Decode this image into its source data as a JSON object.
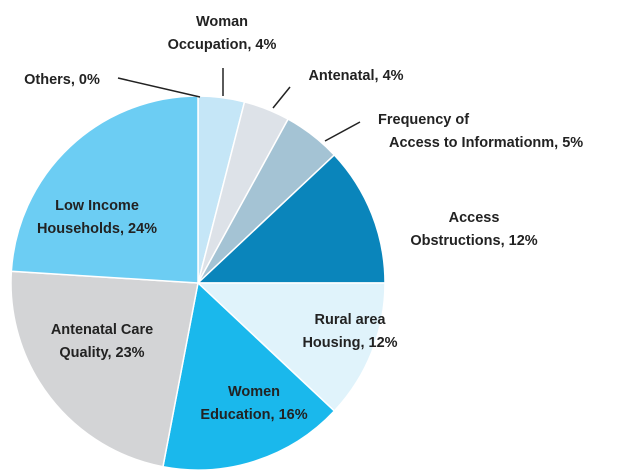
{
  "chart_data": {
    "type": "pie",
    "categories": [
      "Others",
      "Woman Occupation",
      "Antenatal",
      "Frequency of Access to Informationm",
      "Access Obstructions",
      "Rural area Housing",
      "Women Education",
      "Antenatal Care Quality",
      "Low Income Households"
    ],
    "values": [
      0,
      4,
      4,
      5,
      12,
      12,
      16,
      23,
      24
    ],
    "value_labels": [
      "0%",
      "4%",
      "4%",
      "5%",
      "12%",
      "12%",
      "16%",
      "23%",
      "24%"
    ],
    "colors": [
      "#ffffff",
      "#c5e6f7",
      "#dde2e8",
      "#a4c3d4",
      "#0a85bb",
      "#e0f3fb",
      "#1ab8ec",
      "#d3d4d6",
      "#6ccdf3"
    ]
  }
}
